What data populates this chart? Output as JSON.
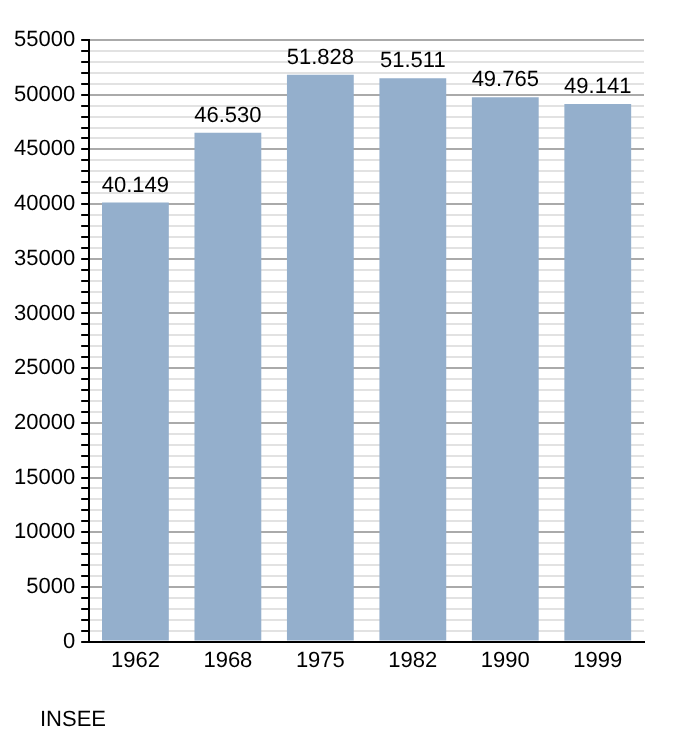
{
  "chart_data": {
    "type": "bar",
    "categories": [
      "1962",
      "1968",
      "1975",
      "1982",
      "1990",
      "1999"
    ],
    "values": [
      40149,
      46530,
      51828,
      51511,
      49765,
      49141
    ],
    "value_labels": [
      "40.149",
      "46.530",
      "51.828",
      "51.511",
      "49.765",
      "49.141"
    ],
    "color": "#94afcc",
    "ylim": [
      0,
      55000
    ],
    "yticks": [
      0,
      {
        "value": 1000,
        "label": null
      },
      {
        "value": 2000,
        "label": null
      },
      {
        "value": 3000,
        "label": null
      },
      {
        "value": 4000,
        "label": null
      },
      5000,
      {
        "value": 6000,
        "label": null
      },
      {
        "value": 7000,
        "label": null
      },
      {
        "value": 8000,
        "label": null
      },
      {
        "value": 9000,
        "label": null
      },
      10000,
      {
        "value": 11000,
        "label": null
      },
      {
        "value": 12000,
        "label": null
      },
      {
        "value": 13000,
        "label": null
      },
      {
        "value": 14000,
        "label": null
      },
      15000,
      {
        "value": 16000,
        "label": null
      },
      {
        "value": 17000,
        "label": null
      },
      {
        "value": 18000,
        "label": null
      },
      {
        "value": 19000,
        "label": null
      },
      20000,
      {
        "value": 21000,
        "label": null
      },
      {
        "value": 22000,
        "label": null
      },
      {
        "value": 23000,
        "label": null
      },
      {
        "value": 24000,
        "label": null
      },
      25000,
      {
        "value": 26000,
        "label": null
      },
      {
        "value": 27000,
        "label": null
      },
      {
        "value": 28000,
        "label": null
      },
      {
        "value": 29000,
        "label": null
      },
      30000,
      {
        "value": 31000,
        "label": null
      },
      {
        "value": 32000,
        "label": null
      },
      {
        "value": 33000,
        "label": null
      },
      {
        "value": 34000,
        "label": null
      },
      35000,
      {
        "value": 36000,
        "label": null
      },
      {
        "value": 37000,
        "label": null
      },
      {
        "value": 38000,
        "label": null
      },
      {
        "value": 39000,
        "label": null
      },
      40000,
      {
        "value": 41000,
        "label": null
      },
      {
        "value": 42000,
        "label": null
      },
      {
        "value": 43000,
        "label": null
      },
      {
        "value": 44000,
        "label": null
      },
      45000,
      {
        "value": 46000,
        "label": null
      },
      {
        "value": 47000,
        "label": null
      },
      {
        "value": 48000,
        "label": null
      },
      {
        "value": 49000,
        "label": null
      },
      50000,
      {
        "value": 51000,
        "label": null
      },
      {
        "value": 52000,
        "label": null
      },
      {
        "value": 53000,
        "label": null
      },
      {
        "value": 54000,
        "label": null
      },
      55000
    ],
    "grid": "y",
    "legend": false,
    "annotations": [
      "INSEE"
    ]
  }
}
